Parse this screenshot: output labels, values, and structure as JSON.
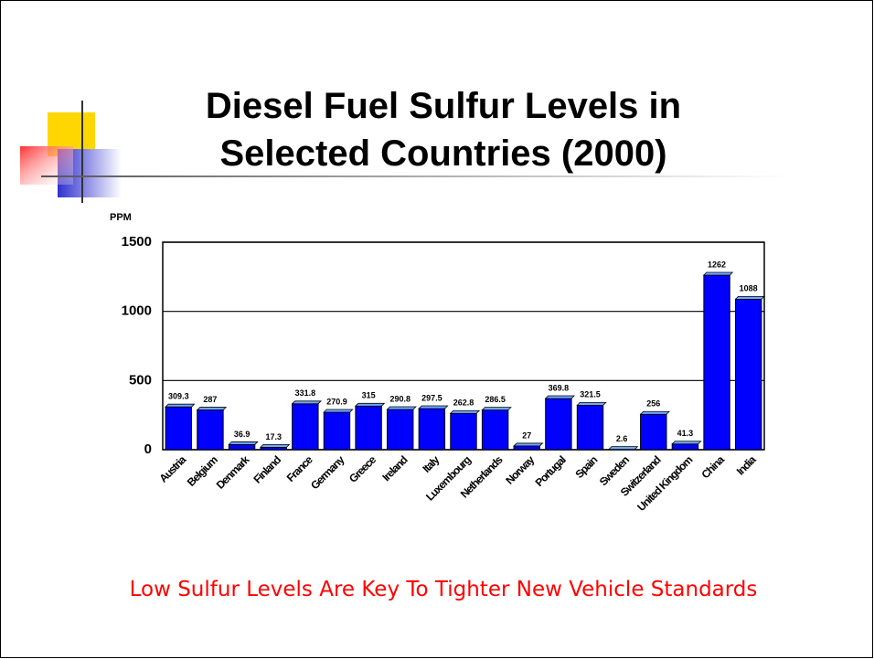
{
  "chart_data": {
    "type": "bar",
    "title": "Diesel Fuel Sulfur Levels in Selected Countries (2000)",
    "y_label": "PPM",
    "categories": [
      "Austria",
      "Belgium",
      "Denmark",
      "Finland",
      "France",
      "Germany",
      "Greece",
      "Ireland",
      "Italy",
      "Luxembourg",
      "Netherlands",
      "Norway",
      "Portugal",
      "Spain",
      "Sweden",
      "Switzerland",
      "United Kingdom",
      "China",
      "India"
    ],
    "values": [
      309.3,
      287,
      36.9,
      17.3,
      331.8,
      270.9,
      315,
      290.8,
      297.5,
      262.8,
      286.5,
      27,
      369.8,
      321.5,
      2.6,
      256,
      41.3,
      1262,
      1088
    ],
    "color": "#0000ff",
    "ylim": [
      0,
      1500
    ],
    "yticks": [
      0,
      500,
      1000,
      1500
    ],
    "grid": true,
    "annotation": "Low Sulfur Levels Are Key To Tighter New Vehicle Standards"
  }
}
